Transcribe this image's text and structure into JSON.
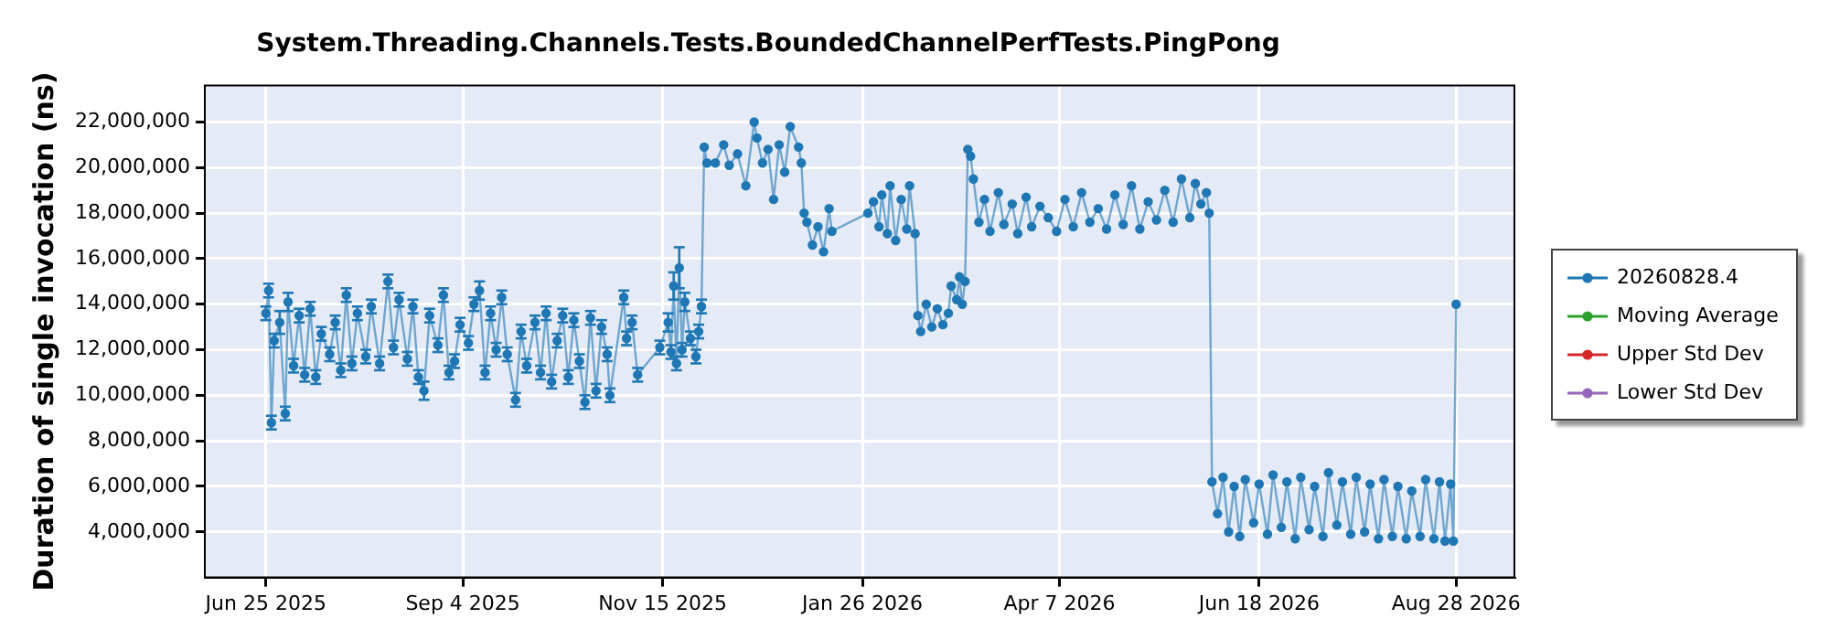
{
  "chart_data": {
    "type": "line",
    "title": "System.Threading.Channels.Tests.BoundedChannelPerfTests.PingPong",
    "ylabel": "Duration of single invocation (ns)",
    "xlim": [
      "2025-06-03",
      "2026-09-18"
    ],
    "xticks": [
      {
        "value": "2025-06-25",
        "label": "Jun 25 2025"
      },
      {
        "value": "2025-09-04",
        "label": "Sep 4 2025"
      },
      {
        "value": "2025-11-15",
        "label": "Nov 15 2025"
      },
      {
        "value": "2026-01-26",
        "label": "Jan 26 2026"
      },
      {
        "value": "2026-04-07",
        "label": "Apr 7 2026"
      },
      {
        "value": "2026-06-18",
        "label": "Jun 18 2026"
      },
      {
        "value": "2026-08-28",
        "label": "Aug 28 2026"
      }
    ],
    "ylim": [
      2000000,
      23600000
    ],
    "yticks": [
      {
        "value": 4000000,
        "label": "4,000,000"
      },
      {
        "value": 6000000,
        "label": "6,000,000"
      },
      {
        "value": 8000000,
        "label": "8,000,000"
      },
      {
        "value": 10000000,
        "label": "10,000,000"
      },
      {
        "value": 12000000,
        "label": "12,000,000"
      },
      {
        "value": 14000000,
        "label": "14,000,000"
      },
      {
        "value": 16000000,
        "label": "16,000,000"
      },
      {
        "value": 18000000,
        "label": "18,000,000"
      },
      {
        "value": 20000000,
        "label": "20,000,000"
      },
      {
        "value": 22000000,
        "label": "22,000,000"
      }
    ],
    "grid": true,
    "legend": "right",
    "marker": "circle",
    "line_style": "solid",
    "series": [
      {
        "name": "20260828.4",
        "color": "#1f77b4",
        "x": [
          "2025-06-25",
          "2025-06-26",
          "2025-06-27",
          "2025-06-28",
          "2025-06-30",
          "2025-07-02",
          "2025-07-03",
          "2025-07-05",
          "2025-07-07",
          "2025-07-09",
          "2025-07-11",
          "2025-07-13",
          "2025-07-15",
          "2025-07-18",
          "2025-07-20",
          "2025-07-22",
          "2025-07-24",
          "2025-07-26",
          "2025-07-28",
          "2025-07-31",
          "2025-08-02",
          "2025-08-05",
          "2025-08-08",
          "2025-08-10",
          "2025-08-12",
          "2025-08-15",
          "2025-08-17",
          "2025-08-19",
          "2025-08-21",
          "2025-08-23",
          "2025-08-26",
          "2025-08-28",
          "2025-08-30",
          "2025-09-01",
          "2025-09-03",
          "2025-09-06",
          "2025-09-08",
          "2025-09-10",
          "2025-09-12",
          "2025-09-14",
          "2025-09-16",
          "2025-09-18",
          "2025-09-20",
          "2025-09-23",
          "2025-09-25",
          "2025-09-27",
          "2025-09-30",
          "2025-10-02",
          "2025-10-04",
          "2025-10-06",
          "2025-10-08",
          "2025-10-10",
          "2025-10-12",
          "2025-10-14",
          "2025-10-16",
          "2025-10-18",
          "2025-10-20",
          "2025-10-22",
          "2025-10-24",
          "2025-10-26",
          "2025-10-27",
          "2025-11-01",
          "2025-11-02",
          "2025-11-04",
          "2025-11-06",
          "2025-11-14",
          "2025-11-17",
          "2025-11-18",
          "2025-11-19",
          "2025-11-20",
          "2025-11-21",
          "2025-11-22",
          "2025-11-23",
          "2025-11-25",
          "2025-11-27",
          "2025-11-28",
          "2025-11-29",
          "2025-11-30",
          "2025-12-01",
          "2025-12-04",
          "2025-12-07",
          "2025-12-09",
          "2025-12-12",
          "2025-12-15",
          "2025-12-18",
          "2025-12-19",
          "2025-12-21",
          "2025-12-23",
          "2025-12-25",
          "2025-12-27",
          "2025-12-29",
          "2025-12-31",
          "2026-01-03",
          "2026-01-04",
          "2026-01-05",
          "2026-01-06",
          "2026-01-08",
          "2026-01-10",
          "2026-01-12",
          "2026-01-14",
          "2026-01-15",
          "2026-01-28",
          "2026-01-30",
          "2026-02-01",
          "2026-02-02",
          "2026-02-04",
          "2026-02-05",
          "2026-02-07",
          "2026-02-09",
          "2026-02-11",
          "2026-02-12",
          "2026-02-14",
          "2026-02-15",
          "2026-02-16",
          "2026-02-18",
          "2026-02-20",
          "2026-02-22",
          "2026-02-24",
          "2026-02-26",
          "2026-02-27",
          "2026-03-01",
          "2026-03-02",
          "2026-03-03",
          "2026-03-04",
          "2026-03-05",
          "2026-03-06",
          "2026-03-07",
          "2026-03-09",
          "2026-03-11",
          "2026-03-13",
          "2026-03-16",
          "2026-03-18",
          "2026-03-21",
          "2026-03-23",
          "2026-03-26",
          "2026-03-28",
          "2026-03-31",
          "2026-04-03",
          "2026-04-06",
          "2026-04-09",
          "2026-04-12",
          "2026-04-15",
          "2026-04-18",
          "2026-04-21",
          "2026-04-24",
          "2026-04-27",
          "2026-04-30",
          "2026-05-03",
          "2026-05-06",
          "2026-05-09",
          "2026-05-12",
          "2026-05-15",
          "2026-05-18",
          "2026-05-21",
          "2026-05-24",
          "2026-05-26",
          "2026-05-28",
          "2026-05-30",
          "2026-05-31",
          "2026-06-01",
          "2026-06-03",
          "2026-06-05",
          "2026-06-07",
          "2026-06-09",
          "2026-06-11",
          "2026-06-13",
          "2026-06-16",
          "2026-06-18",
          "2026-06-21",
          "2026-06-23",
          "2026-06-26",
          "2026-06-28",
          "2026-07-01",
          "2026-07-03",
          "2026-07-06",
          "2026-07-08",
          "2026-07-11",
          "2026-07-13",
          "2026-07-16",
          "2026-07-18",
          "2026-07-21",
          "2026-07-23",
          "2026-07-26",
          "2026-07-28",
          "2026-07-31",
          "2026-08-02",
          "2026-08-05",
          "2026-08-07",
          "2026-08-10",
          "2026-08-12",
          "2026-08-15",
          "2026-08-17",
          "2026-08-20",
          "2026-08-22",
          "2026-08-24",
          "2026-08-26",
          "2026-08-27",
          "2026-08-28"
        ],
        "values": [
          13600000,
          14600000,
          8800000,
          12400000,
          13200000,
          9200000,
          14100000,
          11300000,
          13500000,
          10900000,
          13800000,
          10800000,
          12700000,
          11800000,
          13200000,
          11100000,
          14400000,
          11400000,
          13600000,
          11700000,
          13900000,
          11400000,
          15000000,
          12100000,
          14200000,
          11600000,
          13900000,
          10800000,
          10200000,
          13500000,
          12200000,
          14400000,
          11000000,
          11500000,
          13100000,
          12300000,
          14000000,
          14600000,
          11000000,
          13600000,
          12000000,
          14300000,
          11800000,
          9800000,
          12800000,
          11300000,
          13200000,
          11000000,
          13600000,
          10600000,
          12400000,
          13500000,
          10800000,
          13300000,
          11500000,
          9700000,
          13400000,
          10200000,
          13000000,
          11800000,
          10000000,
          14300000,
          12500000,
          13200000,
          10900000,
          12100000,
          13200000,
          11900000,
          14800000,
          11400000,
          15600000,
          12000000,
          14100000,
          12500000,
          11700000,
          12800000,
          13900000,
          20900000,
          20200000,
          20200000,
          21000000,
          20100000,
          20600000,
          19200000,
          22000000,
          21300000,
          20200000,
          20800000,
          18600000,
          21000000,
          19800000,
          21800000,
          20900000,
          20200000,
          18000000,
          17600000,
          16600000,
          17400000,
          16300000,
          18200000,
          17200000,
          18000000,
          18500000,
          17400000,
          18800000,
          17100000,
          19200000,
          16800000,
          18600000,
          17300000,
          19200000,
          17100000,
          13500000,
          12800000,
          14000000,
          13000000,
          13800000,
          13100000,
          13600000,
          14800000,
          14200000,
          15200000,
          14000000,
          15000000,
          20800000,
          20500000,
          19500000,
          17600000,
          18600000,
          17200000,
          18900000,
          17500000,
          18400000,
          17100000,
          18700000,
          17400000,
          18300000,
          17800000,
          17200000,
          18600000,
          17400000,
          18900000,
          17600000,
          18200000,
          17300000,
          18800000,
          17500000,
          19200000,
          17300000,
          18500000,
          17700000,
          19000000,
          17600000,
          19500000,
          17800000,
          19300000,
          18400000,
          18900000,
          18000000,
          6200000,
          4800000,
          6400000,
          4000000,
          6000000,
          3800000,
          6300000,
          4400000,
          6100000,
          3900000,
          6500000,
          4200000,
          6200000,
          3700000,
          6400000,
          4100000,
          6000000,
          3800000,
          6600000,
          4300000,
          6200000,
          3900000,
          6400000,
          4000000,
          6100000,
          3700000,
          6300000,
          3800000,
          6000000,
          3700000,
          5800000,
          3800000,
          6300000,
          3700000,
          6200000,
          3600000,
          6100000,
          3600000,
          14000000
        ],
        "errors": [
          300000,
          300000,
          300000,
          300000,
          500000,
          300000,
          400000,
          300000,
          300000,
          300000,
          300000,
          300000,
          300000,
          300000,
          300000,
          300000,
          300000,
          300000,
          300000,
          300000,
          300000,
          300000,
          300000,
          300000,
          300000,
          300000,
          300000,
          300000,
          400000,
          300000,
          300000,
          300000,
          300000,
          300000,
          300000,
          300000,
          300000,
          400000,
          300000,
          300000,
          300000,
          300000,
          300000,
          300000,
          300000,
          300000,
          300000,
          300000,
          300000,
          300000,
          300000,
          300000,
          300000,
          300000,
          300000,
          300000,
          300000,
          300000,
          300000,
          300000,
          300000,
          300000,
          300000,
          300000,
          300000,
          300000,
          400000,
          300000,
          600000,
          300000,
          900000,
          300000,
          400000,
          300000,
          300000,
          300000,
          300000,
          null,
          null,
          null,
          null,
          null,
          null,
          null,
          null,
          null,
          null,
          null,
          null,
          null,
          null,
          null,
          null,
          null,
          null,
          null,
          null,
          null,
          null,
          null,
          null,
          null,
          null,
          null,
          null,
          null,
          null,
          null,
          null,
          null,
          null,
          null,
          null,
          null,
          null,
          null,
          null,
          null,
          null,
          null,
          null,
          null,
          null,
          null,
          null,
          null,
          null,
          null,
          null,
          null,
          null,
          null,
          null,
          null,
          null,
          null,
          null,
          null,
          null,
          null,
          null,
          null,
          null,
          null,
          null,
          null,
          null,
          null,
          null,
          null,
          null,
          null,
          null,
          null,
          null,
          null,
          null,
          null,
          null,
          null,
          null,
          null,
          null,
          null,
          null,
          null,
          null,
          null,
          null,
          null,
          null,
          null,
          null,
          null,
          null,
          null,
          null,
          null,
          null,
          null,
          null,
          null,
          null,
          null,
          null,
          null,
          null,
          null,
          null,
          null,
          null,
          null,
          null,
          null,
          null,
          null,
          null,
          null
        ]
      },
      {
        "name": "Moving Average",
        "color": "#2ca02c"
      },
      {
        "name": "Upper Std Dev",
        "color": "#d62728"
      },
      {
        "name": "Lower Std Dev",
        "color": "#9467bd"
      }
    ]
  }
}
